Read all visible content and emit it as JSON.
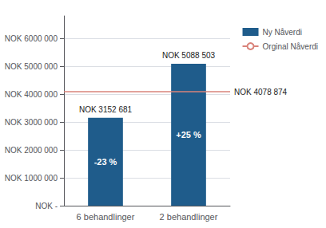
{
  "chart_data": {
    "type": "bar",
    "categories": [
      "6 behandlinger",
      "2 behandlinger"
    ],
    "series": [
      {
        "name": "Ny Nåverdi",
        "type": "bar",
        "color": "#1f5c8b",
        "values": [
          3152681,
          5088503
        ],
        "value_labels": [
          "NOK 3152 681",
          "NOK 5088 503"
        ],
        "annotations": [
          "-23 %",
          "+25 %"
        ]
      }
    ],
    "reference_line": {
      "name": "Orginal Nåverdi",
      "value": 4078874,
      "label": "NOK 4078 874",
      "color": "#d9837a"
    },
    "ylim": [
      0,
      6800000
    ],
    "yticks": [
      {
        "value": 0,
        "label": "NOK -"
      },
      {
        "value": 1000000,
        "label": "NOK 1000 000"
      },
      {
        "value": 2000000,
        "label": "NOK 2000 000"
      },
      {
        "value": 3000000,
        "label": "NOK 3000 000"
      },
      {
        "value": 4000000,
        "label": "NOK 4000 000"
      },
      {
        "value": 5000000,
        "label": "NOK 5000 000"
      },
      {
        "value": 6000000,
        "label": "NOK 6000 000"
      }
    ],
    "grid": true,
    "data_labels": true,
    "legend": "right"
  }
}
